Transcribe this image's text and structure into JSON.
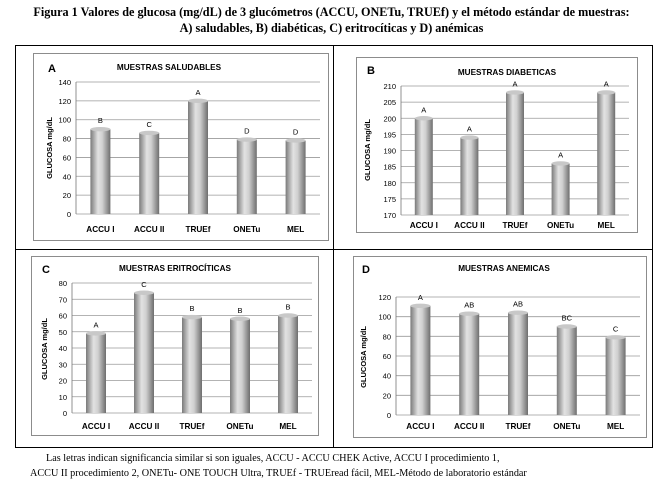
{
  "figure": {
    "title_line1": "Figura 1 Valores de glucosa (mg/dL) de 3 glucómetros (ACCU,  ONETu, TRUEf) y el método estándar de muestras:",
    "title_line2": "A) saludables, B) diabéticas, C) eritrocíticas y D) anémicas",
    "footnote": {
      "line1": "Las letras indican significancia similar si son iguales, ACCU - ACCU CHEK Active, ACCU I procedimiento 1,",
      "line2": "ACCU II procedimiento 2, ONETu- ONE TOUCH Ultra, TRUEf - TRUEread fácil, MEL-Método de laboratorio estándar"
    }
  },
  "chart_data": [
    {
      "type": "bar",
      "panel": "A",
      "title": "MUESTRAS SALUDABLES",
      "ylabel": "GLUCOSA mg/dL",
      "categories": [
        "ACCU I",
        "ACCU II",
        "TRUEf",
        "ONETu",
        "MEL"
      ],
      "values": [
        90,
        86,
        120,
        79,
        78
      ],
      "letters": [
        "B",
        "C",
        "A",
        "D",
        "D"
      ],
      "ylim": [
        0,
        140
      ],
      "yticks": [
        0,
        20,
        40,
        60,
        80,
        100,
        120,
        140
      ],
      "grid": true
    },
    {
      "type": "bar",
      "panel": "B",
      "title": "MUESTRAS DIABETICAS",
      "ylabel": "GLUCOSA mg/dL",
      "categories": [
        "ACCU I",
        "ACCU II",
        "TRUEf",
        "ONETu",
        "MEL"
      ],
      "values": [
        200,
        194,
        208,
        186,
        208
      ],
      "letters": [
        "A",
        "A",
        "A",
        "A",
        "A"
      ],
      "ylim": [
        170,
        210
      ],
      "yticks": [
        170,
        175,
        180,
        185,
        190,
        195,
        200,
        205,
        210
      ],
      "grid": true
    },
    {
      "type": "bar",
      "panel": "C",
      "title": "MUESTRAS ERITROCÍTICAS",
      "ylabel": "GLUCOSA mg/dL",
      "categories": [
        "ACCU I",
        "ACCU II",
        "TRUEf",
        "ONETu",
        "MEL"
      ],
      "values": [
        49,
        74,
        59,
        58,
        60
      ],
      "letters": [
        "A",
        "C",
        "B",
        "B",
        "B"
      ],
      "ylim": [
        0,
        80
      ],
      "yticks": [
        0,
        10,
        20,
        30,
        40,
        50,
        60,
        70,
        80
      ],
      "grid": true
    },
    {
      "type": "bar",
      "panel": "D",
      "title": "MUESTRAS ANEMICAS",
      "ylabel": "GLUCOSA mg/dL",
      "categories": [
        "ACCU I",
        "ACCU II",
        "TRUEf",
        "ONETu",
        "MEL"
      ],
      "values": [
        111,
        103,
        104,
        90,
        79
      ],
      "letters": [
        "A",
        "AB",
        "AB",
        "BC",
        "C"
      ],
      "ylim": [
        0,
        120
      ],
      "yticks": [
        0,
        20,
        40,
        60,
        80,
        100,
        120
      ],
      "grid": true
    }
  ]
}
